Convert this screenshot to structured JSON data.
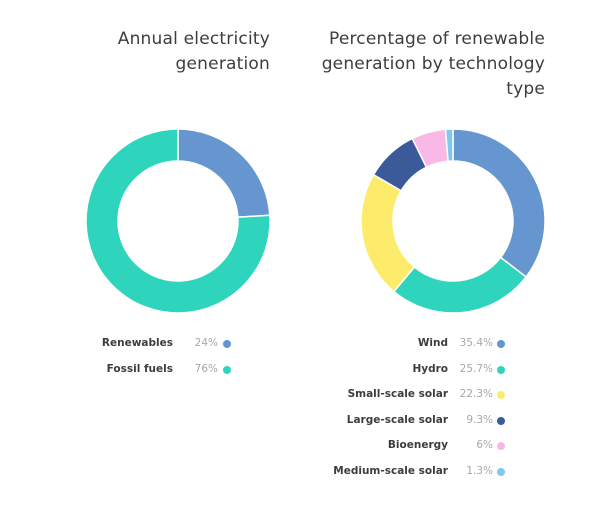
{
  "chart_data": [
    {
      "type": "pie",
      "title": "Annual electricity generation",
      "title_lines": [
        "Annual electricity",
        "generation"
      ],
      "categories": [
        "Renewables",
        "Fossil fuels"
      ],
      "values": [
        24,
        76
      ],
      "value_labels": [
        "24%",
        "76%"
      ],
      "colors": [
        "#6596cf",
        "#2fd4bc"
      ],
      "legend_position": "bottom"
    },
    {
      "type": "pie",
      "title": "Percentage of renewable generation by technology type",
      "title_lines": [
        "Percentage of renewable",
        "generation by technology",
        "type"
      ],
      "categories": [
        "Wind",
        "Hydro",
        "Small-scale solar",
        "Large-scale solar",
        "Bioenergy",
        "Medium-scale solar"
      ],
      "values": [
        35.4,
        25.7,
        22.3,
        9.3,
        6,
        1.3
      ],
      "value_labels": [
        "35.4%",
        "25.7%",
        "22.3%",
        "9.3%",
        "6%",
        "1.3%"
      ],
      "colors": [
        "#6596cf",
        "#2fd4bc",
        "#fdec6c",
        "#3b5a9a",
        "#f9b8e6",
        "#7fc8ee"
      ],
      "legend_position": "bottom"
    }
  ]
}
